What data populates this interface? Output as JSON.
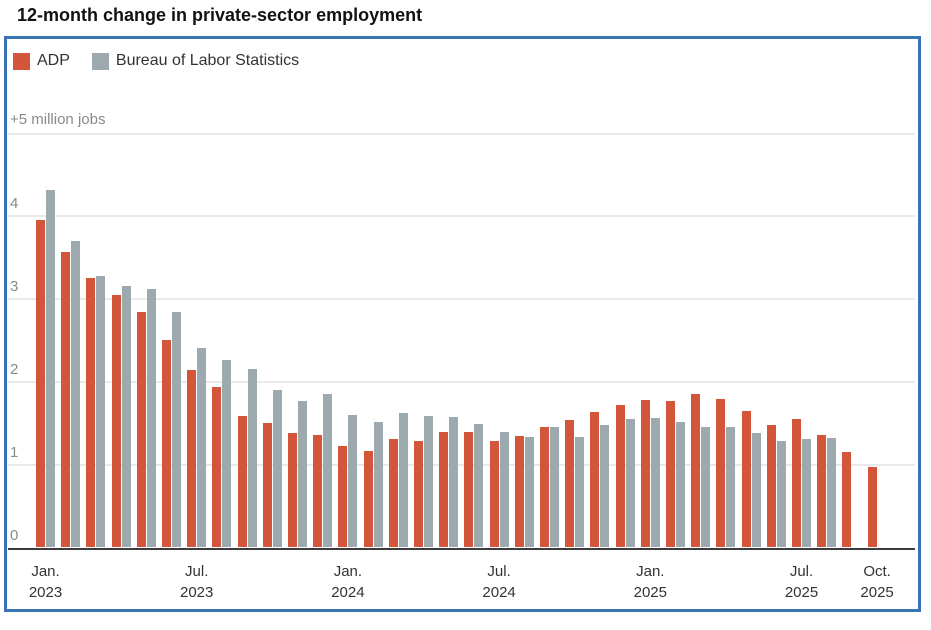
{
  "title": "12-month change in private-sector employment",
  "unit_label": "+5 million jobs",
  "colors": {
    "adp": "#d4563a",
    "bls": "#9ca9af",
    "frame_border": "#3a73b4",
    "gridline": "#e9e9e9",
    "axis": "#3c3c3c",
    "axis_text": "#8a8a8a",
    "title_text": "#121212",
    "legend_text": "#333333"
  },
  "chart_data": {
    "type": "bar",
    "title": "12-month change in private-sector employment",
    "xlabel": "",
    "ylabel": "+5 million jobs",
    "ylim": [
      0,
      5
    ],
    "grid": true,
    "legend_position": "top-left",
    "categories": [
      "Jan. 2023",
      "Feb. 2023",
      "Mar. 2023",
      "Apr. 2023",
      "May 2023",
      "Jun. 2023",
      "Jul. 2023",
      "Aug. 2023",
      "Sep. 2023",
      "Oct. 2023",
      "Nov. 2023",
      "Dec. 2023",
      "Jan. 2024",
      "Feb. 2024",
      "Mar. 2024",
      "Apr. 2024",
      "May 2024",
      "Jun. 2024",
      "Jul. 2024",
      "Aug. 2024",
      "Sep. 2024",
      "Oct. 2024",
      "Nov. 2024",
      "Dec. 2024",
      "Jan. 2025",
      "Feb. 2025",
      "Mar. 2025",
      "Apr. 2025",
      "May 2025",
      "Jun. 2025",
      "Jul. 2025",
      "Aug. 2025",
      "Sep. 2025",
      "Oct. 2025"
    ],
    "series": [
      {
        "name": "ADP",
        "color": "#d4563a",
        "values": [
          3.95,
          3.57,
          3.25,
          3.05,
          2.85,
          2.51,
          2.14,
          1.94,
          1.59,
          1.5,
          1.38,
          1.36,
          1.23,
          1.16,
          1.31,
          1.29,
          1.4,
          1.39,
          1.29,
          1.35,
          1.45,
          1.54,
          1.64,
          1.72,
          1.78,
          1.77,
          1.85,
          1.79,
          1.65,
          1.48,
          1.55,
          1.36,
          1.15,
          0.97
        ]
      },
      {
        "name": "Bureau of Labor Statistics",
        "color": "#9ca9af",
        "values": [
          4.32,
          3.7,
          3.28,
          3.16,
          3.12,
          2.85,
          2.41,
          2.27,
          2.16,
          1.9,
          1.77,
          1.85,
          1.6,
          1.51,
          1.62,
          1.59,
          1.58,
          1.49,
          1.4,
          1.33,
          1.45,
          1.33,
          1.48,
          1.55,
          1.56,
          1.52,
          1.46,
          1.46,
          1.38,
          1.29,
          1.31,
          1.32,
          null,
          null
        ]
      }
    ],
    "y_ticks": [
      0,
      1,
      2,
      3,
      4
    ],
    "grid_values": [
      1,
      2,
      3,
      4,
      5
    ],
    "x_tick_labels": [
      {
        "index": 0,
        "line1": "Jan.",
        "line2": "2023"
      },
      {
        "index": 6,
        "line1": "Jul.",
        "line2": "2023"
      },
      {
        "index": 12,
        "line1": "Jan.",
        "line2": "2024"
      },
      {
        "index": 18,
        "line1": "Jul.",
        "line2": "2024"
      },
      {
        "index": 24,
        "line1": "Jan.",
        "line2": "2025"
      },
      {
        "index": 30,
        "line1": "Jul.",
        "line2": "2025"
      },
      {
        "index": 33,
        "line1": "Oct.",
        "line2": "2025"
      }
    ]
  }
}
